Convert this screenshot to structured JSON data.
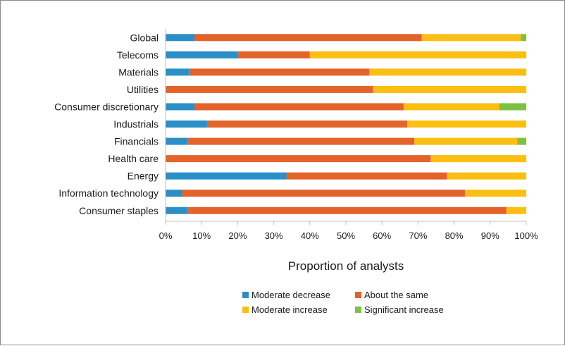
{
  "chart_data": {
    "type": "bar",
    "orientation": "horizontal",
    "stacked": true,
    "stack_mode": "percent",
    "categories": [
      "Global",
      "Telecoms",
      "Materials",
      "Utilities",
      "Consumer discretionary",
      "Industrials",
      "Financials",
      "Health care",
      "Energy",
      "Information technology",
      "Consumer staples"
    ],
    "series": [
      {
        "name": "Moderate decrease",
        "color": "#2b8fc7",
        "values": [
          8,
          20,
          6.5,
          0,
          8,
          11.5,
          6,
          0,
          33.5,
          4.5,
          6
        ]
      },
      {
        "name": "About the same",
        "color": "#e3632a",
        "values": [
          63,
          20,
          50,
          57.5,
          58,
          55.5,
          63,
          73.5,
          44.5,
          78.5,
          88.5
        ]
      },
      {
        "name": "Moderate increase",
        "color": "#fbbf13",
        "values": [
          27.5,
          60,
          43.5,
          42.5,
          26.5,
          33,
          28.5,
          26.5,
          22,
          17,
          5.5
        ]
      },
      {
        "name": "Significant increase",
        "color": "#7cc242",
        "values": [
          1.5,
          0,
          0,
          0,
          7.5,
          0,
          2.5,
          0,
          0,
          0,
          0
        ]
      }
    ],
    "xlabel": "Proportion of analysts",
    "xlim": [
      0,
      100
    ],
    "x_ticks": [
      "0%",
      "10%",
      "20%",
      "30%",
      "40%",
      "50%",
      "60%",
      "70%",
      "80%",
      "90%",
      "100%"
    ],
    "grid": false,
    "legend_position": "bottom"
  }
}
